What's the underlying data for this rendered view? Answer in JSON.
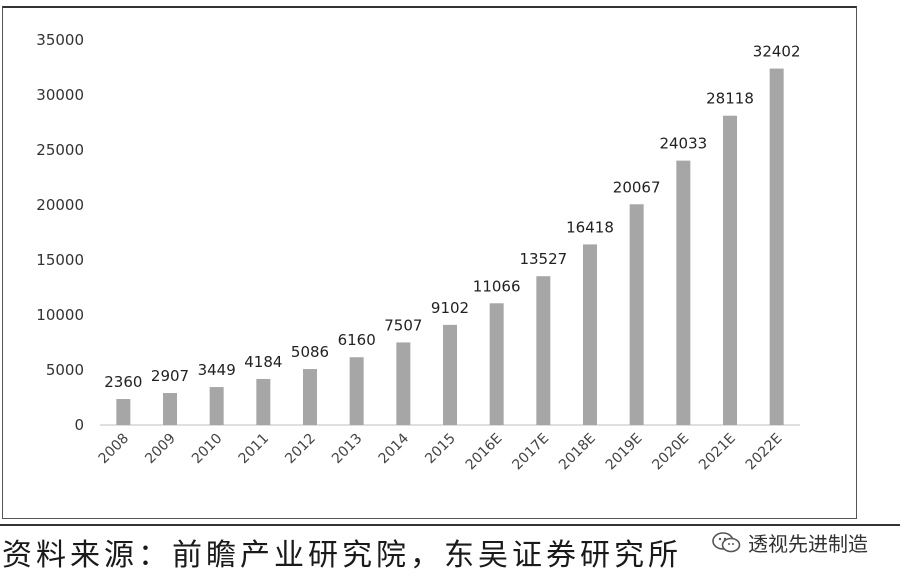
{
  "chart_data": {
    "type": "bar",
    "categories": [
      "2008",
      "2009",
      "2010",
      "2011",
      "2012",
      "2013",
      "2014",
      "2015",
      "2016E",
      "2017E",
      "2018E",
      "2019E",
      "2020E",
      "2021E",
      "2022E"
    ],
    "values": [
      2360,
      2907,
      3449,
      4184,
      5086,
      6160,
      7507,
      9102,
      11066,
      13527,
      16418,
      20067,
      24033,
      28118,
      32402
    ],
    "title": "",
    "xlabel": "",
    "ylabel": "",
    "ylim": [
      0,
      35000
    ],
    "yticks": [
      0,
      5000,
      10000,
      15000,
      20000,
      25000,
      30000,
      35000
    ],
    "grid": false,
    "legend": "none",
    "bar_color": "#a6a6a6"
  },
  "footer": {
    "source": "资料来源：前瞻产业研究院，东吴证券研究所",
    "watermark": "透视先进制造",
    "watermark_icon": "wechat-icon"
  }
}
